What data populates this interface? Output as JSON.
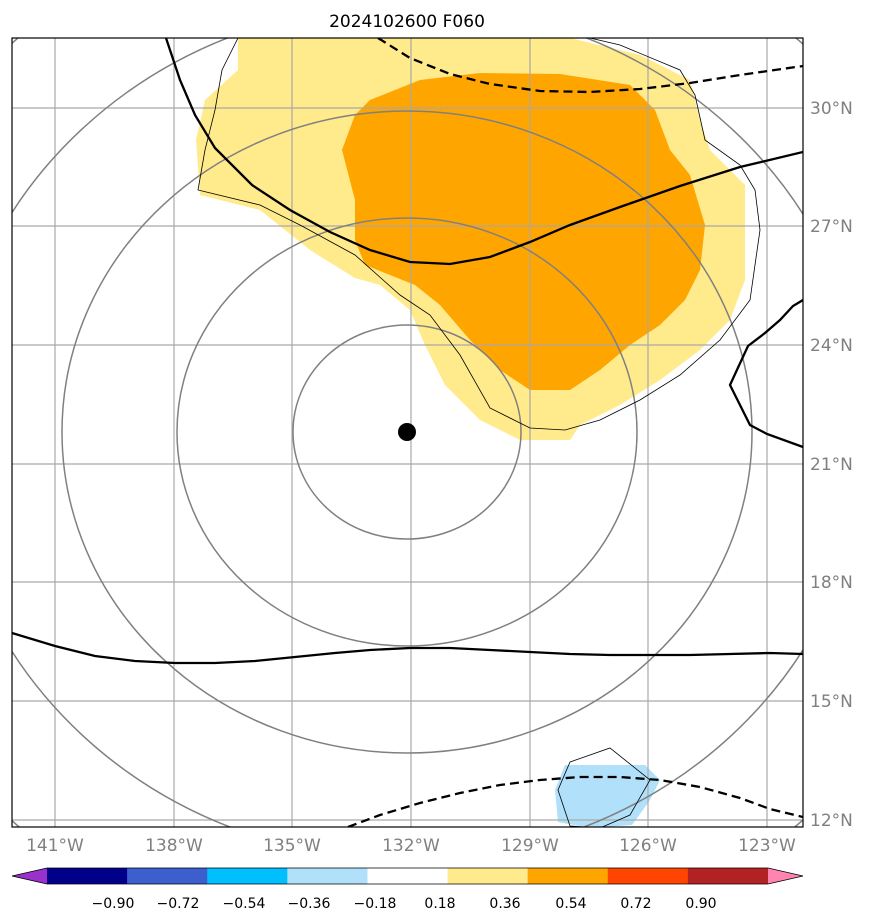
{
  "title": "2024102600 F060",
  "longitude_labels": [
    "141°W",
    "138°W",
    "135°W",
    "132°W",
    "129°W",
    "126°W",
    "123°W"
  ],
  "latitude_labels": [
    "30°N",
    "27°N",
    "24°N",
    "21°N",
    "18°N",
    "15°N",
    "12°N"
  ],
  "colorbar": {
    "tick_labels": [
      "−0.90",
      "−0.72",
      "−0.54",
      "−0.36",
      "−0.18",
      "0.18",
      "0.36",
      "0.54",
      "0.72",
      "0.90"
    ],
    "colors": [
      "#9932cc",
      "#00008b",
      "#3c5fcd",
      "#00bfff",
      "#b0e0fa",
      "#ffffff",
      "#ffea8c",
      "#ffa500",
      "#ff4500",
      "#b22222",
      "#ff85b0"
    ]
  },
  "map": {
    "center_marker": {
      "lon": -132,
      "lat": 21.8
    },
    "fill_colors": {
      "light_positive": "#ffea8c",
      "positive": "#ffa500",
      "light_negative": "#b0e0fa"
    },
    "grid_color": "#a9a9a9",
    "range_ring_color": "#808080"
  }
}
